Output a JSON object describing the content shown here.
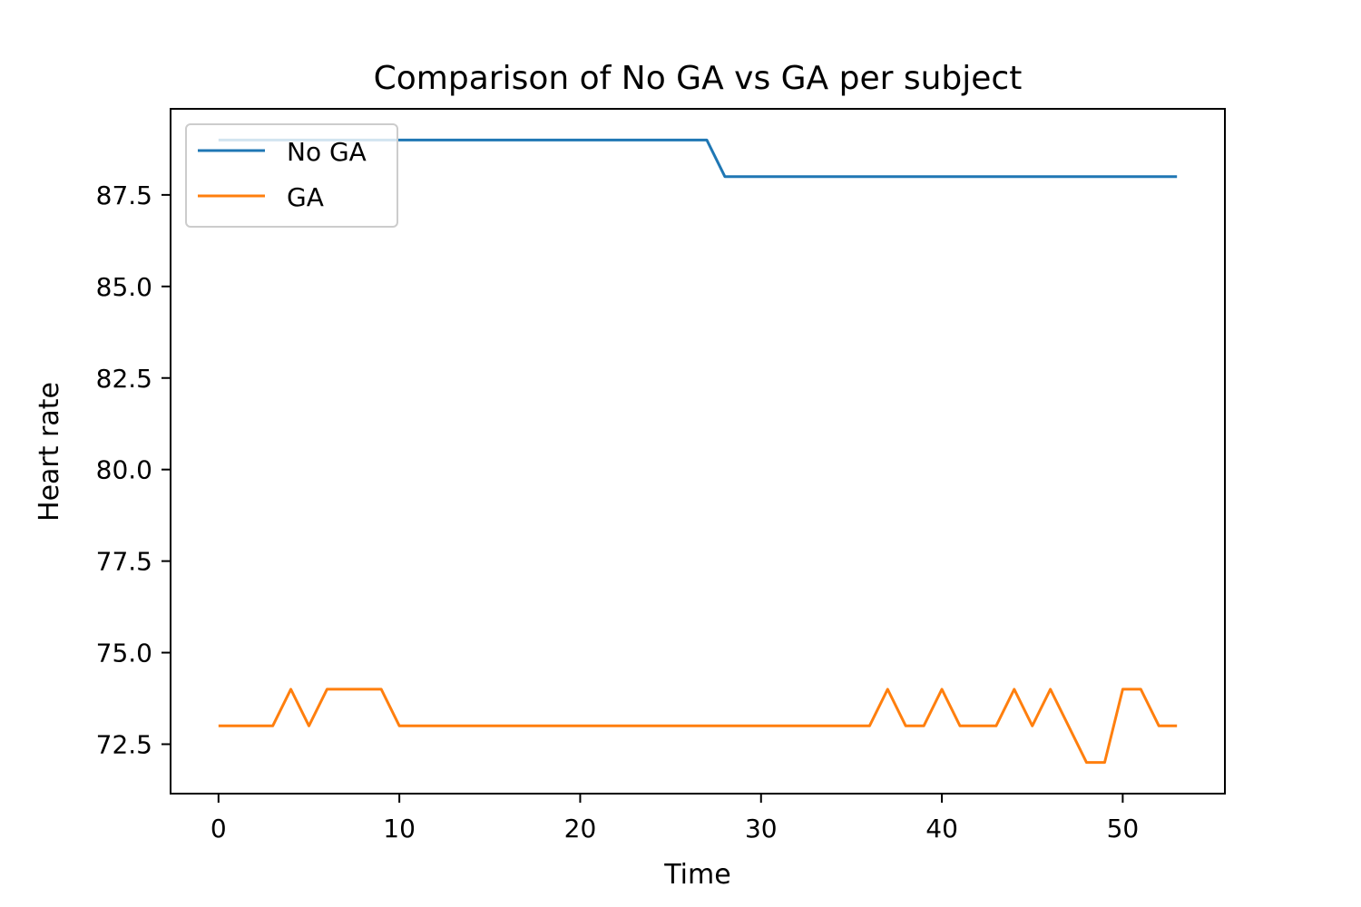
{
  "chart_data": {
    "type": "line",
    "title": "Comparison of No GA vs GA per subject",
    "xlabel": "Time",
    "ylabel": "Heart rate",
    "xlim": [
      -2.65,
      55.65
    ],
    "ylim": [
      71.15,
      89.85
    ],
    "xticks": [
      0,
      10,
      20,
      30,
      40,
      50
    ],
    "xtick_labels": [
      "0",
      "10",
      "20",
      "30",
      "40",
      "50"
    ],
    "yticks": [
      72.5,
      75.0,
      77.5,
      80.0,
      82.5,
      85.0,
      87.5
    ],
    "ytick_labels": [
      "72.5",
      "75.0",
      "77.5",
      "80.0",
      "82.5",
      "85.0",
      "87.5"
    ],
    "grid": false,
    "legend_position": "upper left",
    "series": [
      {
        "name": "No GA",
        "color": "#1f77b4",
        "x": [
          0,
          1,
          2,
          3,
          4,
          5,
          6,
          7,
          8,
          9,
          10,
          11,
          12,
          13,
          14,
          15,
          16,
          17,
          18,
          19,
          20,
          21,
          22,
          23,
          24,
          25,
          26,
          27,
          28,
          29,
          30,
          31,
          32,
          33,
          34,
          35,
          36,
          37,
          38,
          39,
          40,
          41,
          42,
          43,
          44,
          45,
          46,
          47,
          48,
          49,
          50,
          51,
          52,
          53
        ],
        "y": [
          89,
          89,
          89,
          89,
          89,
          89,
          89,
          89,
          89,
          89,
          89,
          89,
          89,
          89,
          89,
          89,
          89,
          89,
          89,
          89,
          89,
          89,
          89,
          89,
          89,
          89,
          89,
          89,
          88,
          88,
          88,
          88,
          88,
          88,
          88,
          88,
          88,
          88,
          88,
          88,
          88,
          88,
          88,
          88,
          88,
          88,
          88,
          88,
          88,
          88,
          88,
          88,
          88,
          88
        ]
      },
      {
        "name": "GA",
        "color": "#ff7f0e",
        "x": [
          0,
          1,
          2,
          3,
          4,
          5,
          6,
          7,
          8,
          9,
          10,
          11,
          12,
          13,
          14,
          15,
          16,
          17,
          18,
          19,
          20,
          21,
          22,
          23,
          24,
          25,
          26,
          27,
          28,
          29,
          30,
          31,
          32,
          33,
          34,
          35,
          36,
          37,
          38,
          39,
          40,
          41,
          42,
          43,
          44,
          45,
          46,
          47,
          48,
          49,
          50,
          51,
          52,
          53
        ],
        "y": [
          73,
          73,
          73,
          73,
          74,
          73,
          74,
          74,
          74,
          74,
          73,
          73,
          73,
          73,
          73,
          73,
          73,
          73,
          73,
          73,
          73,
          73,
          73,
          73,
          73,
          73,
          73,
          73,
          73,
          73,
          73,
          73,
          73,
          73,
          73,
          73,
          73,
          74,
          73,
          73,
          74,
          73,
          73,
          73,
          74,
          73,
          74,
          73,
          72,
          72,
          74,
          74,
          73,
          73
        ]
      }
    ]
  }
}
